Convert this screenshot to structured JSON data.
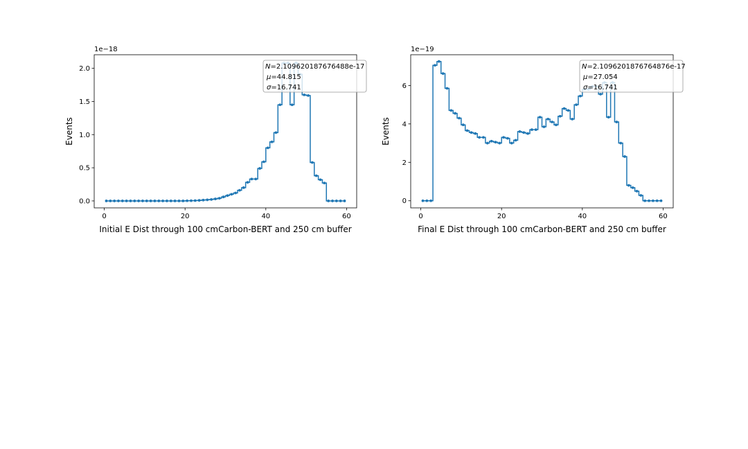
{
  "figure": {
    "background": "#ffffff",
    "line_color": "#1f77b4"
  },
  "chart_data": [
    {
      "type": "line",
      "drawstyle": "steps-mid",
      "markers": true,
      "xlabel": "Initial E Dist through 100 cmCarbon-BERT and 250 cm buffer",
      "ylabel": "Events",
      "exponent_label": "1e−18",
      "xlim": [
        -2.5,
        62.5
      ],
      "ylim": [
        -0.105,
        2.205
      ],
      "xticks": [
        0,
        20,
        40,
        60
      ],
      "xtick_labels": [
        "0",
        "20",
        "40",
        "60"
      ],
      "yticks": [
        0.0,
        0.5,
        1.0,
        1.5,
        2.0
      ],
      "ytick_labels": [
        "0.0",
        "0.5",
        "1.0",
        "1.5",
        "2.0"
      ],
      "legend": {
        "placement": "top-right",
        "lines": [
          "N=2.109620187676488e-17",
          "μ=44.815",
          "σ=16.741"
        ]
      },
      "x": [
        0.5,
        1.5,
        2.5,
        3.5,
        4.5,
        5.5,
        6.5,
        7.5,
        8.5,
        9.5,
        10.5,
        11.5,
        12.5,
        13.5,
        14.5,
        15.5,
        16.5,
        17.5,
        18.5,
        19.5,
        20.5,
        21.5,
        22.5,
        23.5,
        24.5,
        25.5,
        26.5,
        27.5,
        28.5,
        29.5,
        30.5,
        31.5,
        32.5,
        33.5,
        34.5,
        35.5,
        36.5,
        37.5,
        38.5,
        39.5,
        40.5,
        41.5,
        42.5,
        43.5,
        44.5,
        45.5,
        46.5,
        47.5,
        48.5,
        49.5,
        50.5,
        51.5,
        52.5,
        53.5,
        54.5,
        55.5,
        56.5,
        57.5,
        58.5,
        59.5
      ],
      "y": [
        0,
        0,
        0,
        0,
        0,
        0,
        0,
        0,
        0,
        0,
        0,
        0,
        0,
        0,
        0,
        0,
        0,
        0,
        0,
        0,
        0.002,
        0.003,
        0.005,
        0.008,
        0.012,
        0.016,
        0.022,
        0.03,
        0.04,
        0.06,
        0.08,
        0.1,
        0.12,
        0.16,
        0.2,
        0.28,
        0.33,
        0.33,
        0.49,
        0.59,
        0.8,
        0.89,
        1.03,
        1.45,
        2.08,
        2.08,
        1.45,
        2.08,
        1.91,
        1.6,
        1.59,
        0.58,
        0.38,
        0.32,
        0.27,
        0,
        0,
        0,
        0,
        0
      ]
    },
    {
      "type": "line",
      "drawstyle": "steps-mid",
      "markers": true,
      "xlabel": "Final E Dist through 100 cmCarbon-BERT and 250 cm buffer",
      "ylabel": "Events",
      "exponent_label": "1e−19",
      "xlim": [
        -2.5,
        62.5
      ],
      "ylim": [
        -0.37,
        7.6
      ],
      "xticks": [
        0,
        20,
        40,
        60
      ],
      "xtick_labels": [
        "0",
        "20",
        "40",
        "60"
      ],
      "yticks": [
        0,
        2,
        4,
        6
      ],
      "ytick_labels": [
        "0",
        "2",
        "4",
        "6"
      ],
      "legend": {
        "placement": "top-right",
        "lines": [
          "N=2.1096201876764876e-17",
          "μ=27.054",
          "σ=16.741"
        ]
      },
      "x": [
        0.5,
        1.5,
        2.5,
        3.5,
        4.5,
        5.5,
        6.5,
        7.5,
        8.5,
        9.5,
        10.5,
        11.5,
        12.5,
        13.5,
        14.5,
        15.5,
        16.5,
        17.5,
        18.5,
        19.5,
        20.5,
        21.5,
        22.5,
        23.5,
        24.5,
        25.5,
        26.5,
        27.5,
        28.5,
        29.5,
        30.5,
        31.5,
        32.5,
        33.5,
        34.5,
        35.5,
        36.5,
        37.5,
        38.5,
        39.5,
        40.5,
        41.5,
        42.5,
        43.5,
        44.5,
        45.5,
        46.5,
        47.5,
        48.5,
        49.5,
        50.5,
        51.5,
        52.5,
        53.5,
        54.5,
        55.5,
        56.5,
        57.5,
        58.5,
        59.5
      ],
      "y": [
        0,
        0,
        0,
        7.05,
        7.25,
        6.62,
        5.85,
        4.7,
        4.55,
        4.3,
        3.95,
        3.65,
        3.55,
        3.5,
        3.3,
        3.3,
        3.0,
        3.1,
        3.05,
        3.0,
        3.3,
        3.25,
        3.0,
        3.15,
        3.6,
        3.55,
        3.5,
        3.7,
        3.7,
        4.35,
        3.85,
        4.25,
        4.1,
        3.95,
        4.4,
        4.8,
        4.7,
        4.25,
        5.0,
        5.45,
        5.8,
        5.8,
        5.95,
        5.95,
        5.55,
        6.15,
        4.35,
        6.15,
        4.1,
        3.0,
        2.3,
        0.8,
        0.68,
        0.5,
        0.28,
        0,
        0,
        0,
        0,
        0
      ]
    }
  ]
}
